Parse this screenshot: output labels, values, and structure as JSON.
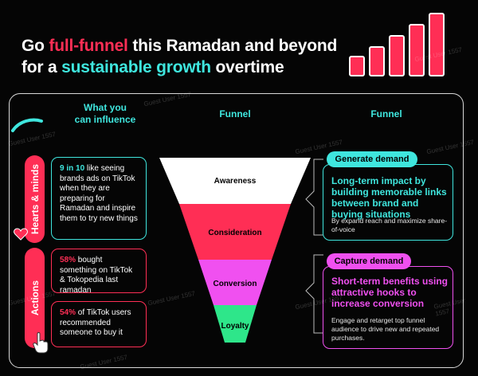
{
  "title": {
    "line1_prefix": "Go ",
    "line1_highlight": "full-funnel",
    "line1_suffix": " this Ramadan and beyond",
    "line2_prefix": "for a ",
    "line2_highlight": "sustainable growth",
    "line2_suffix": " overtime"
  },
  "headers": {
    "influence_line1": "What you",
    "influence_line2": "can influence",
    "funnel_center": "Funnel",
    "funnel_right": "Funnel"
  },
  "categories": {
    "hearts": "Hearts & minds",
    "actions": "Actions"
  },
  "stats": [
    {
      "highlight": "9 in 10",
      "text": " like seeing brands ads on TikTok when they are preparing for Ramadan and inspire them to try new things"
    },
    {
      "highlight": "58%",
      "text": " bought something on TikTok & Tokopedia last ramadan"
    },
    {
      "highlight": "54%",
      "text": " of TikTok users recommended someone to buy it"
    }
  ],
  "funnel_stages": [
    "Awareness",
    "Consideration",
    "Conversion",
    "Loyalty"
  ],
  "demand": {
    "generate": {
      "tag": "Generate demand",
      "headline": "Long-term impact by building  memorable links between brand and buying situations",
      "detail": "By expand reach and maximize share-of-voice"
    },
    "capture": {
      "tag": "Capture demand",
      "headline": "Short-term benefits using attractive hooks to increase conversion",
      "detail": "Engage and retarget top funnel audience to drive new and repeated purchases."
    }
  },
  "watermark": "Guest User 1557",
  "colors": {
    "red": "#ff2e55",
    "teal": "#3fe6de",
    "magenta": "#f050f0",
    "green": "#2ee68a",
    "white": "#ffffff"
  }
}
